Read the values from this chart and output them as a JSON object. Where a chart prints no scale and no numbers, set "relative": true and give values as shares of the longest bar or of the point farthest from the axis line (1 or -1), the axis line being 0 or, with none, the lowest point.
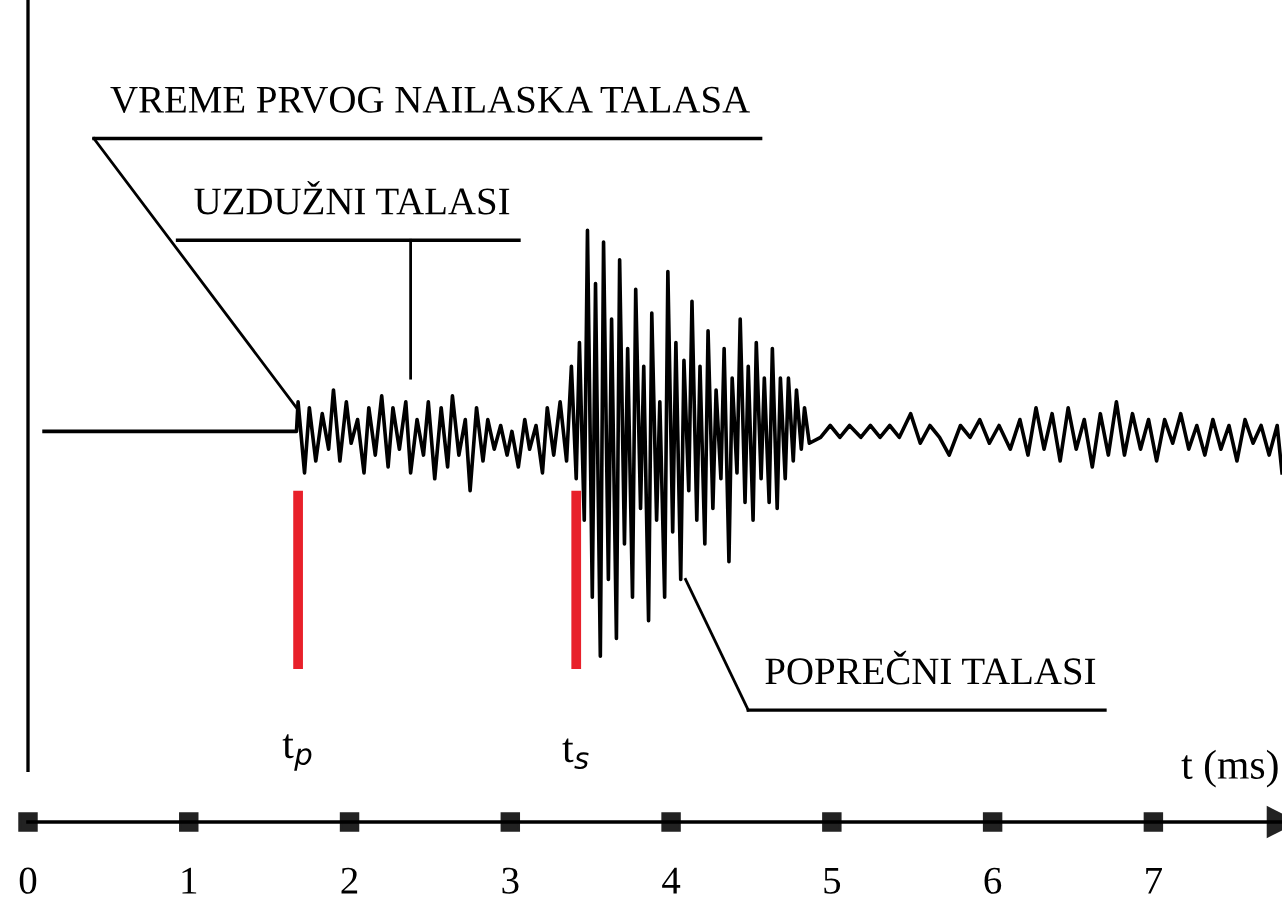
{
  "chart_data": {
    "type": "line",
    "relative": true,
    "xlabel": "t (ms)",
    "xlim": [
      0,
      7.8
    ],
    "xticks": [
      0,
      1,
      2,
      3,
      4,
      5,
      6,
      7
    ],
    "tick_labels": "x",
    "grid": false,
    "legend": false,
    "marker": "none",
    "line_style": "solid",
    "series": [
      {
        "color": "#000000",
        "x": [
          0.1,
          1.67,
          1.68,
          1.72,
          1.75,
          1.79,
          1.83,
          1.87,
          1.9,
          1.94,
          1.98,
          2.01,
          2.05,
          2.09,
          2.12,
          2.16,
          2.2,
          2.24,
          2.27,
          2.31,
          2.35,
          2.38,
          2.42,
          2.46,
          2.49,
          2.53,
          2.57,
          2.61,
          2.64,
          2.68,
          2.72,
          2.75,
          2.79,
          2.83,
          2.86,
          2.9,
          2.94,
          2.98,
          3.01,
          3.05,
          3.09,
          3.12,
          3.16,
          3.2,
          3.23,
          3.27,
          3.31,
          3.35,
          3.38,
          3.41,
          3.43,
          3.46,
          3.48,
          3.51,
          3.53,
          3.56,
          3.58,
          3.61,
          3.63,
          3.66,
          3.68,
          3.71,
          3.73,
          3.76,
          3.78,
          3.81,
          3.83,
          3.86,
          3.88,
          3.91,
          3.93,
          3.96,
          3.98,
          4.01,
          4.03,
          4.06,
          4.08,
          4.11,
          4.13,
          4.16,
          4.18,
          4.21,
          4.23,
          4.26,
          4.28,
          4.31,
          4.33,
          4.36,
          4.38,
          4.41,
          4.43,
          4.46,
          4.48,
          4.51,
          4.53,
          4.56,
          4.58,
          4.61,
          4.63,
          4.66,
          4.68,
          4.71,
          4.73,
          4.76,
          4.78,
          4.81,
          4.83,
          4.86,
          4.93,
          4.99,
          5.05,
          5.11,
          5.18,
          5.24,
          5.3,
          5.36,
          5.42,
          5.49,
          5.55,
          5.61,
          5.67,
          5.73,
          5.8,
          5.86,
          5.92,
          5.98,
          6.04,
          6.11,
          6.17,
          6.22,
          6.27,
          6.32,
          6.37,
          6.42,
          6.47,
          6.52,
          6.57,
          6.62,
          6.67,
          6.72,
          6.77,
          6.82,
          6.87,
          6.92,
          6.97,
          7.02,
          7.07,
          7.12,
          7.17,
          7.22,
          7.27,
          7.32,
          7.37,
          7.42,
          7.47,
          7.52,
          7.57,
          7.62,
          7.67,
          7.72,
          7.77,
          7.8
        ],
        "values": [
          0.66,
          0.66,
          0.71,
          0.59,
          0.7,
          0.61,
          0.69,
          0.63,
          0.73,
          0.61,
          0.71,
          0.64,
          0.68,
          0.59,
          0.7,
          0.62,
          0.72,
          0.6,
          0.7,
          0.63,
          0.71,
          0.59,
          0.68,
          0.62,
          0.71,
          0.58,
          0.7,
          0.6,
          0.72,
          0.62,
          0.68,
          0.56,
          0.7,
          0.61,
          0.68,
          0.63,
          0.67,
          0.62,
          0.66,
          0.6,
          0.68,
          0.63,
          0.67,
          0.59,
          0.7,
          0.62,
          0.71,
          0.61,
          0.77,
          0.58,
          0.81,
          0.51,
          1.0,
          0.38,
          0.91,
          0.28,
          0.98,
          0.41,
          0.85,
          0.31,
          0.95,
          0.47,
          0.8,
          0.38,
          0.9,
          0.53,
          0.77,
          0.34,
          0.86,
          0.51,
          0.71,
          0.38,
          0.93,
          0.49,
          0.81,
          0.41,
          0.78,
          0.56,
          0.88,
          0.51,
          0.77,
          0.47,
          0.83,
          0.53,
          0.73,
          0.58,
          0.8,
          0.44,
          0.75,
          0.59,
          0.85,
          0.54,
          0.77,
          0.51,
          0.81,
          0.58,
          0.75,
          0.54,
          0.8,
          0.53,
          0.75,
          0.58,
          0.75,
          0.61,
          0.73,
          0.63,
          0.7,
          0.64,
          0.65,
          0.67,
          0.65,
          0.67,
          0.65,
          0.67,
          0.65,
          0.67,
          0.65,
          0.69,
          0.64,
          0.67,
          0.65,
          0.62,
          0.67,
          0.65,
          0.68,
          0.64,
          0.67,
          0.63,
          0.68,
          0.62,
          0.7,
          0.63,
          0.69,
          0.61,
          0.7,
          0.63,
          0.68,
          0.6,
          0.69,
          0.62,
          0.71,
          0.62,
          0.69,
          0.63,
          0.68,
          0.61,
          0.68,
          0.64,
          0.69,
          0.63,
          0.67,
          0.62,
          0.68,
          0.63,
          0.67,
          0.61,
          0.68,
          0.64,
          0.67,
          0.62,
          0.67,
          0.59
        ]
      }
    ],
    "ref_lines": [
      {
        "axis": "x",
        "value": 1.68,
        "label": "t$_{p}$",
        "color": "#e8202a"
      },
      {
        "axis": "x",
        "value": 3.41,
        "label": "t$_{s}$",
        "color": "#e8202a"
      }
    ],
    "annotations": [
      {
        "text": "VREME PRVOG NAILASKA TALASA",
        "x": 1.67,
        "y": 0.7
      },
      "UZDUŽNI TALASI",
      {
        "text": "POPREČNI TALASI",
        "x": 4.09,
        "y": 0.41
      }
    ]
  }
}
